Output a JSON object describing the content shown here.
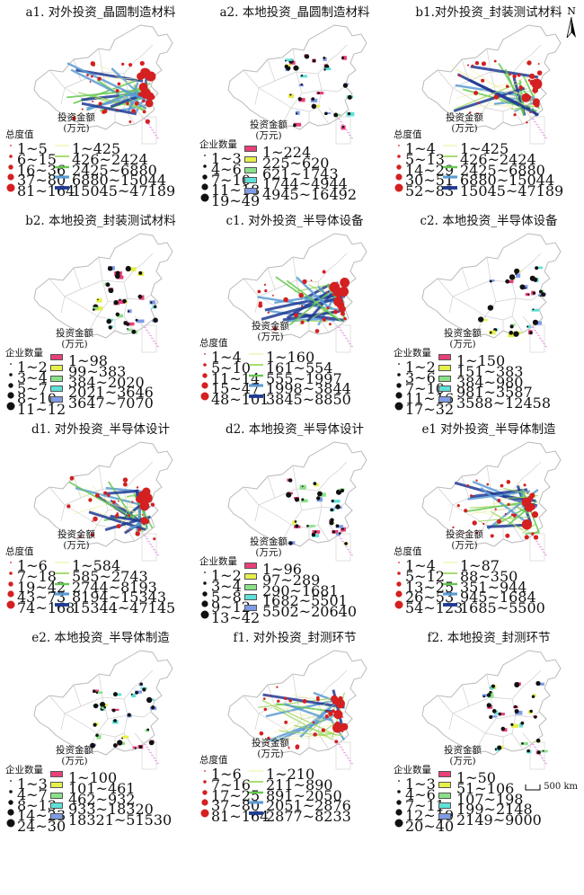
{
  "north_label": "N",
  "scale_label": "500 km",
  "panels": [
    {
      "title": "a1. 对外投资_晶圆制造材料",
      "kind": "out",
      "circle_title": "总度值",
      "circle_items": [
        "1~5",
        "6~15",
        "16~36",
        "37~80",
        "81~164"
      ],
      "amount_title": [
        "投资金额",
        "(万元)"
      ],
      "amount_items": [
        "1~425",
        "426~2424",
        "2425~6880",
        "6880~15044",
        "15045~47189"
      ]
    },
    {
      "title": "a2. 本地投资_晶圆制造材料",
      "kind": "local",
      "circle_title": "企业数量",
      "circle_items": [
        "1~3",
        "4~6",
        "7~10",
        "11~18",
        "19~49"
      ],
      "amount_title": [
        "投资金额",
        "(万元)"
      ],
      "amount_items": [
        "1~224",
        "225~620",
        "621~1743",
        "1744~4944",
        "4945~16492"
      ]
    },
    {
      "title": "b1.对外投资_封装测试材料",
      "kind": "out",
      "circle_title": "总度值",
      "circle_items": [
        "1~4",
        "5~13",
        "14~29",
        "30~51",
        "52~83"
      ],
      "amount_title": [
        "投资金额",
        "(万元)"
      ],
      "amount_items": [
        "1~425",
        "426~2424",
        "2425~6880",
        "6880~15044",
        "15045~47189"
      ]
    },
    {
      "title": "b2. 本地投资_封装测试材料",
      "kind": "local",
      "circle_title": "企业数量",
      "circle_items": [
        "1~2",
        "3~4",
        "5~7",
        "8~10",
        "11~12"
      ],
      "amount_title": [
        "投资金额",
        "(万元)"
      ],
      "amount_items": [
        "1~98",
        "99~383",
        "384~2020",
        "2021~3646",
        "3647~7070"
      ]
    },
    {
      "title": "c1. 对外投资_半导体设备",
      "kind": "out",
      "circle_title": "总度值",
      "circle_items": [
        "1~4",
        "5~10",
        "11~14",
        "15~47",
        "48~101"
      ],
      "amount_title": [
        "投资金额",
        "(万元)"
      ],
      "amount_items": [
        "1~160",
        "161~554",
        "555~1997",
        "1998~3844",
        "3845~8850"
      ]
    },
    {
      "title": "c2. 本地投资_半导体设备",
      "kind": "local",
      "circle_title": "企业数量",
      "circle_items": [
        "1~2",
        "3~6",
        "7~10",
        "11~16",
        "17~32"
      ],
      "amount_title": [
        "投资金额",
        "(万元)"
      ],
      "amount_items": [
        "1~150",
        "151~383",
        "384~980",
        "981~3587",
        "3588~12458"
      ]
    },
    {
      "title": "d1. 对外投资_半导体设计",
      "kind": "out",
      "circle_title": "总度值",
      "circle_items": [
        "1~6",
        "7~18",
        "19~42",
        "43~73",
        "74~168"
      ],
      "amount_title": [
        "投资金额",
        "(万元)"
      ],
      "amount_items": [
        "1~584",
        "585~2743",
        "2744~8193",
        "8194~15343",
        "15344~47145"
      ]
    },
    {
      "title": "d2. 本地投资_半导体设计",
      "kind": "local",
      "circle_title": "企业数量",
      "circle_items": [
        "1~2",
        "3~4",
        "5~8",
        "9~12",
        "13~42"
      ],
      "amount_title": [
        "投资金额",
        "(万元)"
      ],
      "amount_items": [
        "1~96",
        "97~289",
        "290~1681",
        "1682~5501",
        "5502~20640"
      ]
    },
    {
      "title": "e1 对外投资_半导体制造",
      "kind": "out",
      "circle_title": "总度值",
      "circle_items": [
        "1~4",
        "5~12",
        "13~25",
        "26~53",
        "54~123"
      ],
      "amount_title": [
        "投资金额",
        "(万元)"
      ],
      "amount_items": [
        "1~87",
        "88~350",
        "351~944",
        "945~1684",
        "1685~5500"
      ]
    },
    {
      "title": "e2. 本地投资_半导体制造",
      "kind": "local",
      "circle_title": "企业数量",
      "circle_items": [
        "1~3",
        "4~7",
        "8~13",
        "14~23",
        "24~30"
      ],
      "amount_title": [
        "投资金额",
        "(万元)"
      ],
      "amount_items": [
        "1~100",
        "101~461",
        "462~932",
        "933~18320",
        "18321~51530"
      ]
    },
    {
      "title": "f1. 对外投资_封测环节",
      "kind": "out",
      "circle_title": "总度值",
      "circle_items": [
        "1~6",
        "7~16",
        "17~25",
        "37~80",
        "81~164"
      ],
      "amount_title": [
        "投资金额",
        "(万元)"
      ],
      "amount_items": [
        "1~210",
        "211~890",
        "891~2050",
        "2051~2876",
        "2877~8233"
      ]
    },
    {
      "title": "f2. 本地投资_封测环节",
      "kind": "local",
      "circle_title": "企业数量",
      "circle_items": [
        "1~3",
        "4~6",
        "7~11",
        "12~19",
        "20~40"
      ],
      "amount_title": [
        "投资金额",
        "(万元)"
      ],
      "amount_items": [
        "1~50",
        "51~106",
        "107~198",
        "199~2148",
        "2149~9000"
      ]
    }
  ],
  "colors": {
    "boundary": "#b9b9b9",
    "out_circle": "#d42020",
    "local_circle": "#111111",
    "line_scale": [
      "#ecec9a",
      "#9ad65a",
      "#64c850",
      "#5a9bd4",
      "#1f3a93"
    ],
    "box_scale": [
      "#e8407a",
      "#e6f04a",
      "#8be08a",
      "#5fe0d8",
      "#7f9be8"
    ]
  }
}
